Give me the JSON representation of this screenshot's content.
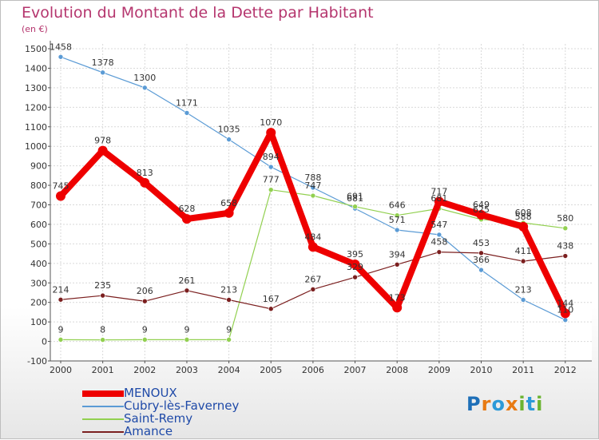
{
  "title": "Evolution du Montant de la Dette par Habitant",
  "unit_label": "(en €)",
  "brand": {
    "letters": [
      {
        "ch": "P",
        "color": "#1e6fb8"
      },
      {
        "ch": "r",
        "color": "#e87a12"
      },
      {
        "ch": "o",
        "color": "#2c9ad8"
      },
      {
        "ch": "x",
        "color": "#e87a12"
      },
      {
        "ch": "i",
        "color": "#6bb431"
      },
      {
        "ch": "t",
        "color": "#2c9ad8"
      },
      {
        "ch": "i",
        "color": "#6bb431"
      }
    ]
  },
  "chart_data": {
    "type": "line",
    "title": "Evolution du Montant de la Dette par Habitant",
    "ylabel": "(en €)",
    "ylim": [
      -100,
      1500
    ],
    "yticks": [
      -100,
      0,
      100,
      200,
      300,
      400,
      500,
      600,
      700,
      800,
      900,
      1000,
      1100,
      1200,
      1300,
      1400,
      1500
    ],
    "x": [
      "2000",
      "2001",
      "2002",
      "2003",
      "2004",
      "2005",
      "2006",
      "2007",
      "2008",
      "2009",
      "2010",
      "2011",
      "2012"
    ],
    "grid": true,
    "legend_position": "bottom-left",
    "series": [
      {
        "name": "MENOUX",
        "color": "#ee0000",
        "width": 8,
        "marker": 6,
        "values": [
          745,
          978,
          813,
          628,
          658,
          1070,
          484,
          395,
          173,
          717,
          649,
          588,
          144
        ]
      },
      {
        "name": "Cubry-lès-Faverney",
        "color": "#5b9bd5",
        "width": 1.2,
        "marker": 3,
        "values": [
          1458,
          1378,
          1300,
          1171,
          1035,
          894,
          788,
          681,
          571,
          547,
          366,
          213,
          110
        ]
      },
      {
        "name": "Saint-Remy",
        "color": "#92d050",
        "width": 1.2,
        "marker": 3,
        "values": [
          9,
          8,
          9,
          9,
          9,
          777,
          747,
          691,
          646,
          681,
          625,
          608,
          580
        ]
      },
      {
        "name": "Amance",
        "color": "#7b1f1f",
        "width": 1.2,
        "marker": 3,
        "values": [
          214,
          235,
          206,
          261,
          213,
          167,
          267,
          329,
          394,
          458,
          453,
          411,
          438
        ]
      }
    ]
  }
}
